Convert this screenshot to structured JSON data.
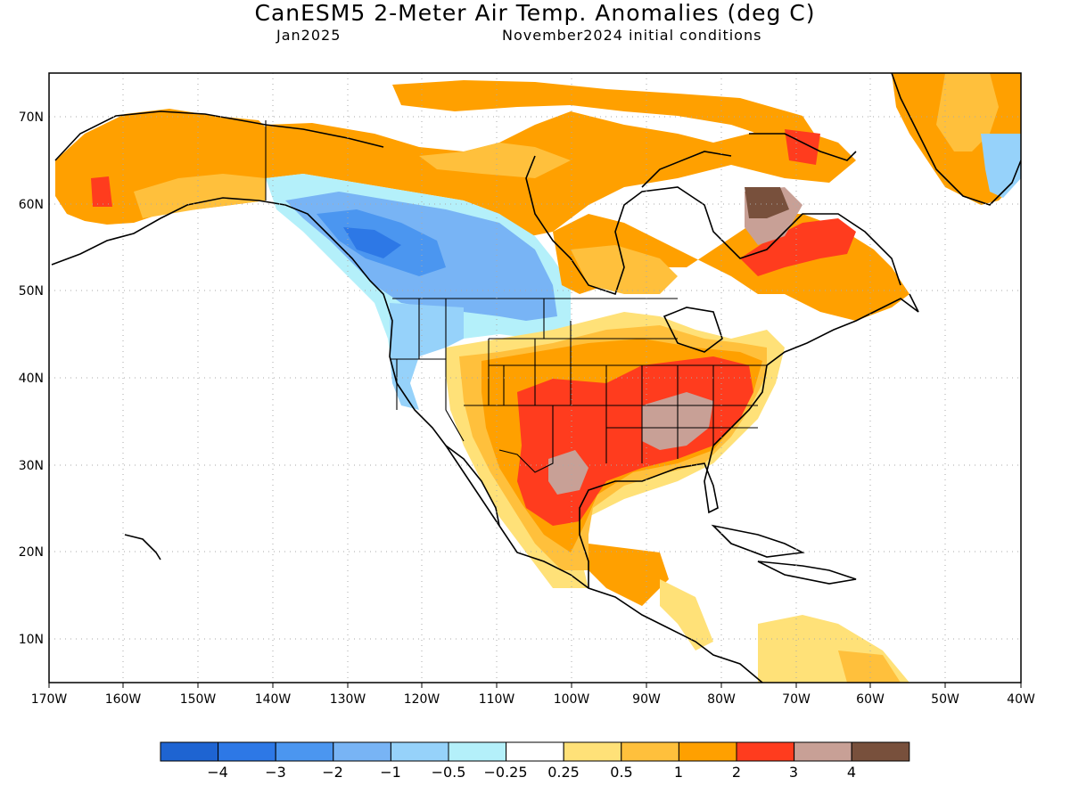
{
  "header": {
    "title": "CanESM5 2-Meter Air Temp. Anomalies (deg C)",
    "valid_month": "Jan2025",
    "init_conditions": "November2024 initial conditions"
  },
  "map": {
    "lat_labels": [
      "70N",
      "60N",
      "50N",
      "40N",
      "30N",
      "20N",
      "10N"
    ],
    "lon_labels": [
      "170W",
      "160W",
      "150W",
      "140W",
      "130W",
      "120W",
      "110W",
      "100W",
      "90W",
      "80W",
      "70W",
      "60W",
      "50W",
      "40W"
    ],
    "regions": [
      {
        "name": "Northwest Canada / Yukon",
        "level": "cold"
      },
      {
        "name": "Pacific Northwest",
        "level": "cool"
      },
      {
        "name": "Alaska",
        "level": "warm"
      },
      {
        "name": "Southern Plains / Southeast US",
        "level": "very-warm"
      },
      {
        "name": "Quebec / Labrador",
        "level": "very-warm"
      }
    ]
  },
  "colorbar": {
    "labels": [
      "−4",
      "−3",
      "−2",
      "−1",
      "−0.5",
      "−0.25",
      "0.25",
      "0.5",
      "1",
      "2",
      "3",
      "4"
    ],
    "colors": [
      "#1e64d2",
      "#2d78e6",
      "#4b96f0",
      "#78b4f5",
      "#96d2fa",
      "#b4f0fa",
      "#ffffff",
      "#ffe178",
      "#ffc03c",
      "#ffa000",
      "#ff3c1e",
      "#c8a096",
      "#78503c"
    ]
  }
}
